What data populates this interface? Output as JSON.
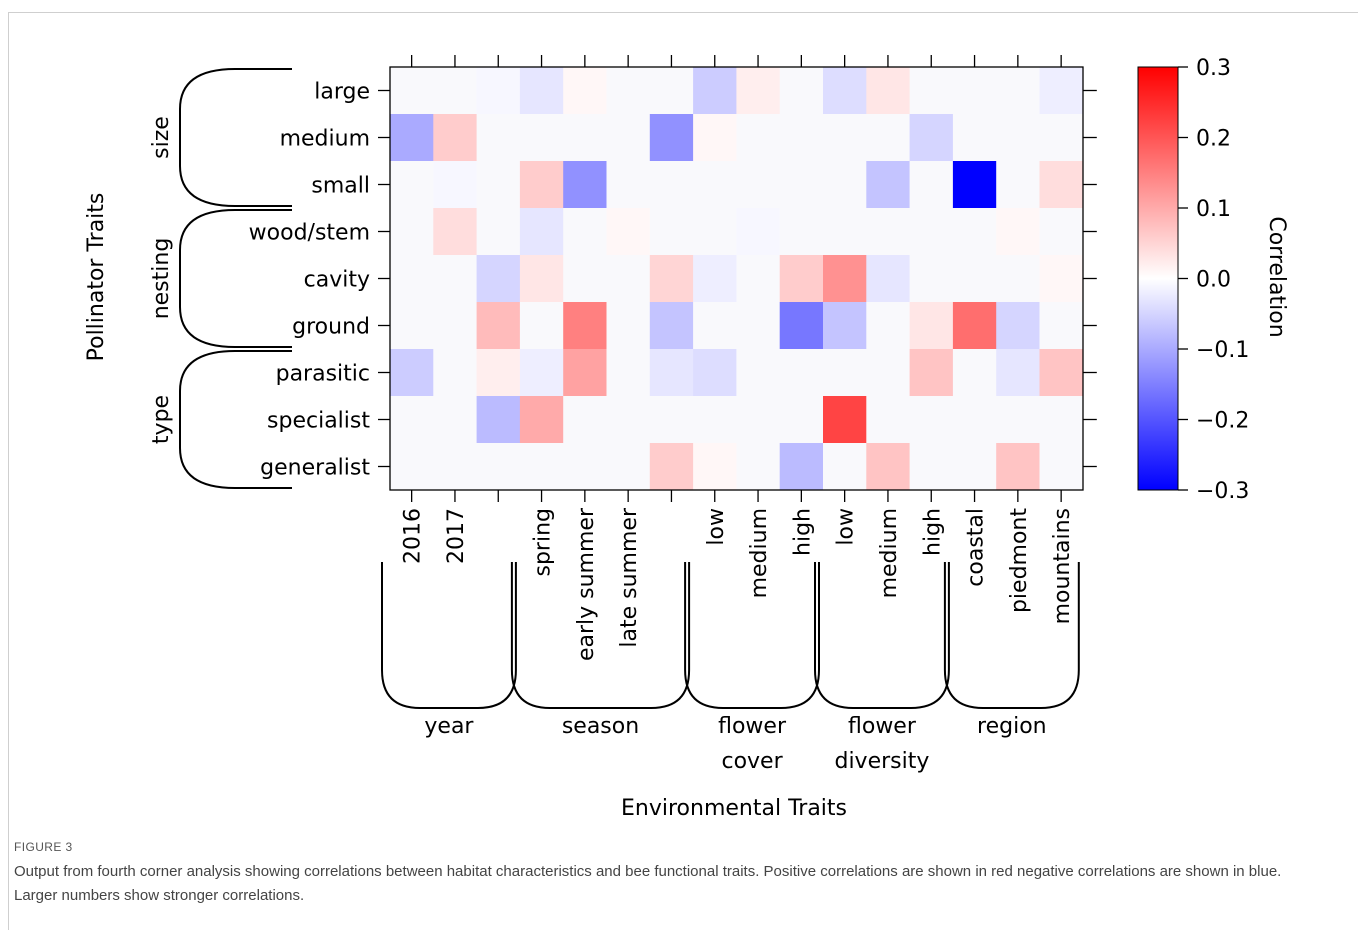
{
  "figure_label": "FIGURE 3",
  "caption": "Output from fourth corner analysis showing correlations between habitat characteristics and bee functional traits. Positive correlations are shown in red negative correlations are shown in blue. Larger numbers show stronger correlations.",
  "chart_data": {
    "type": "heatmap",
    "xlabel": "Environmental Traits",
    "ylabel": "Pollinator Traits",
    "colorbar_label": "Correlation",
    "colorbar_range": [
      -0.3,
      0.3
    ],
    "colorbar_ticks": [
      "0.3",
      "0.2",
      "0.1",
      "0.0",
      "−0.1",
      "−0.2",
      "−0.3"
    ],
    "colorbar_tick_values": [
      0.3,
      0.2,
      0.1,
      0.0,
      -0.1,
      -0.2,
      -0.3
    ],
    "colors": {
      "positive": "#ff0000",
      "zero": "#ffffff",
      "negative": "#0000ff"
    },
    "x_categories": [
      "2016",
      "2017",
      "",
      "spring",
      "early summer",
      "late summer",
      "",
      "low",
      "medium",
      "high",
      "low",
      "medium",
      "high",
      "coastal",
      "piedmont",
      "mountains"
    ],
    "y_categories": [
      "large",
      "medium",
      "small",
      "wood/stem",
      "cavity",
      "ground",
      "parasitic",
      "specialist",
      "generalist"
    ],
    "x_groups": [
      {
        "lines": [
          "year"
        ],
        "from": 0,
        "to": 2
      },
      {
        "lines": [
          "season"
        ],
        "from": 3,
        "to": 6
      },
      {
        "lines": [
          "flower",
          "cover"
        ],
        "from": 7,
        "to": 9
      },
      {
        "lines": [
          "flower",
          "diversity"
        ],
        "from": 10,
        "to": 12
      },
      {
        "lines": [
          "region"
        ],
        "from": 13,
        "to": 15
      }
    ],
    "y_groups": [
      {
        "label": "size",
        "from": 0,
        "to": 2
      },
      {
        "label": "nesting",
        "from": 3,
        "to": 5
      },
      {
        "label": "type",
        "from": 6,
        "to": 8
      }
    ],
    "values": [
      [
        0.0,
        0.0,
        -0.01,
        -0.03,
        0.01,
        0.0,
        0.0,
        -0.06,
        0.02,
        0.0,
        -0.04,
        0.03,
        0.0,
        0.0,
        0.0,
        -0.02
      ],
      [
        -0.1,
        0.06,
        0.0,
        0.0,
        0.0,
        0.0,
        -0.13,
        0.01,
        0.0,
        0.0,
        0.0,
        0.0,
        -0.05,
        0.0,
        0.0,
        0.0
      ],
      [
        0.0,
        -0.01,
        0.0,
        0.06,
        -0.13,
        0.0,
        0.0,
        0.0,
        0.0,
        0.0,
        0.0,
        -0.07,
        0.0,
        -0.3,
        0.0,
        0.04
      ],
      [
        0.0,
        0.04,
        0.0,
        -0.03,
        0.0,
        0.01,
        0.0,
        0.0,
        -0.01,
        0.0,
        0.0,
        0.0,
        0.0,
        0.0,
        0.01,
        0.0
      ],
      [
        0.0,
        0.0,
        -0.05,
        0.03,
        0.0,
        0.0,
        0.05,
        -0.02,
        0.0,
        0.06,
        0.13,
        -0.03,
        0.0,
        0.0,
        0.0,
        0.01
      ],
      [
        0.0,
        0.0,
        0.08,
        0.0,
        0.15,
        0.0,
        -0.07,
        0.0,
        0.0,
        -0.16,
        -0.07,
        0.0,
        0.03,
        0.17,
        -0.05,
        0.0
      ],
      [
        -0.06,
        0.0,
        0.02,
        -0.02,
        0.11,
        0.0,
        -0.03,
        -0.04,
        0.0,
        0.0,
        0.0,
        0.0,
        0.07,
        0.0,
        -0.03,
        0.07
      ],
      [
        0.0,
        0.0,
        -0.08,
        0.1,
        0.0,
        0.0,
        0.0,
        0.0,
        0.0,
        0.0,
        0.22,
        0.0,
        0.0,
        0.0,
        0.0,
        0.0
      ],
      [
        0.0,
        0.0,
        0.0,
        0.0,
        0.0,
        0.0,
        0.06,
        0.01,
        0.0,
        -0.08,
        0.0,
        0.07,
        0.0,
        0.0,
        0.07,
        0.0
      ]
    ]
  }
}
